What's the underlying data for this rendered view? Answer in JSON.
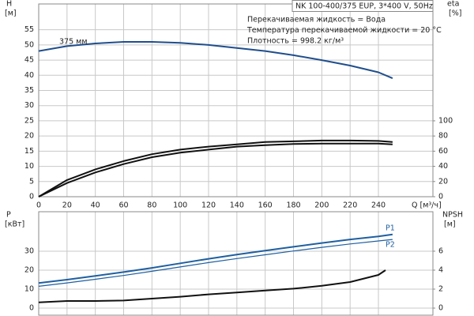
{
  "chart_data": [
    {
      "type": "line",
      "title": "NK 100-400/375 EUP, 3*400 V, 50Hz",
      "annotations": [
        "Перекачиваемая жидкость = Вода",
        "Температура перекачиваемой жидкости = 20 °C",
        "Плотность = 998.2 кг/м³"
      ],
      "ylabel": "H",
      "yunit": "[м]",
      "y2label": "eta",
      "y2unit": "[%]",
      "xlabel": "Q [м³/ч]",
      "x": [
        0,
        20,
        40,
        60,
        80,
        100,
        120,
        140,
        160,
        180,
        200,
        220,
        240,
        250
      ],
      "xlim": [
        0,
        278.5
      ],
      "xticks": [
        0,
        20,
        40,
        60,
        80,
        100,
        120,
        140,
        160,
        180,
        200,
        220,
        240
      ],
      "ylim": [
        0,
        63.5
      ],
      "yticks": [
        0,
        5,
        10,
        15,
        20,
        25,
        30,
        35,
        40,
        45,
        50,
        55
      ],
      "y2lim": [
        0,
        254
      ],
      "y2ticks": [
        0,
        20,
        40,
        60,
        80,
        100
      ],
      "grid": true,
      "show_xtick_labels": true,
      "series": [
        {
          "name": "375 мм",
          "color": "#1f4e8c",
          "line_width": 2,
          "values": [
            48,
            49.6,
            50.5,
            51,
            51,
            50.7,
            50,
            49,
            48,
            46.6,
            45,
            43.2,
            41,
            39
          ]
        },
        {
          "color": "#111111",
          "line_width": 2,
          "axis": "y2",
          "values": [
            0,
            22,
            36,
            47,
            56,
            62,
            66,
            69,
            72,
            73,
            74,
            74,
            73.5,
            72
          ]
        },
        {
          "color": "#111111",
          "line_width": 2,
          "axis": "y2",
          "values": [
            0,
            18,
            32,
            43,
            52,
            58,
            62,
            66,
            68,
            69.5,
            70,
            70,
            70,
            69
          ]
        }
      ]
    },
    {
      "type": "line",
      "ylabel": "P",
      "yunit": "[кВт]",
      "y2label": "NPSH",
      "y2unit": "[м]",
      "x": [
        0,
        20,
        40,
        60,
        80,
        100,
        120,
        140,
        160,
        180,
        200,
        220,
        240,
        250
      ],
      "xlim": [
        0,
        278.5
      ],
      "xticks": [
        0,
        20,
        40,
        60,
        80,
        100,
        120,
        140,
        160,
        180,
        200,
        220,
        240
      ],
      "ylim": [
        0,
        50.8
      ],
      "yticks": [
        0,
        10,
        20,
        30
      ],
      "y2lim": [
        0,
        10.16
      ],
      "y2ticks": [
        0,
        2,
        4,
        6
      ],
      "grid": true,
      "show_xtick_labels": false,
      "series": [
        {
          "name": "P1",
          "color": "#1f5fa0",
          "line_width": 2,
          "values": [
            13.2,
            15,
            17,
            19,
            21.2,
            23.6,
            26,
            28.2,
            30.3,
            32.3,
            34.3,
            36.2,
            37.8,
            38.8
          ]
        },
        {
          "name": "P2",
          "color": "#1f5fa0",
          "line_width": 1.2,
          "values": [
            11.5,
            13.3,
            15.2,
            17.2,
            19.4,
            21.7,
            24,
            26.1,
            28.1,
            30.1,
            32,
            33.8,
            35.4,
            36.2
          ]
        },
        {
          "color": "#111111",
          "line_width": 2,
          "axis": "y2",
          "x": [
            0,
            20,
            40,
            60,
            80,
            100,
            120,
            140,
            160,
            180,
            200,
            220,
            240,
            245
          ],
          "values": [
            0.6,
            0.75,
            0.75,
            0.8,
            1,
            1.2,
            1.45,
            1.65,
            1.85,
            2.05,
            2.35,
            2.75,
            3.5,
            4
          ]
        }
      ]
    }
  ]
}
